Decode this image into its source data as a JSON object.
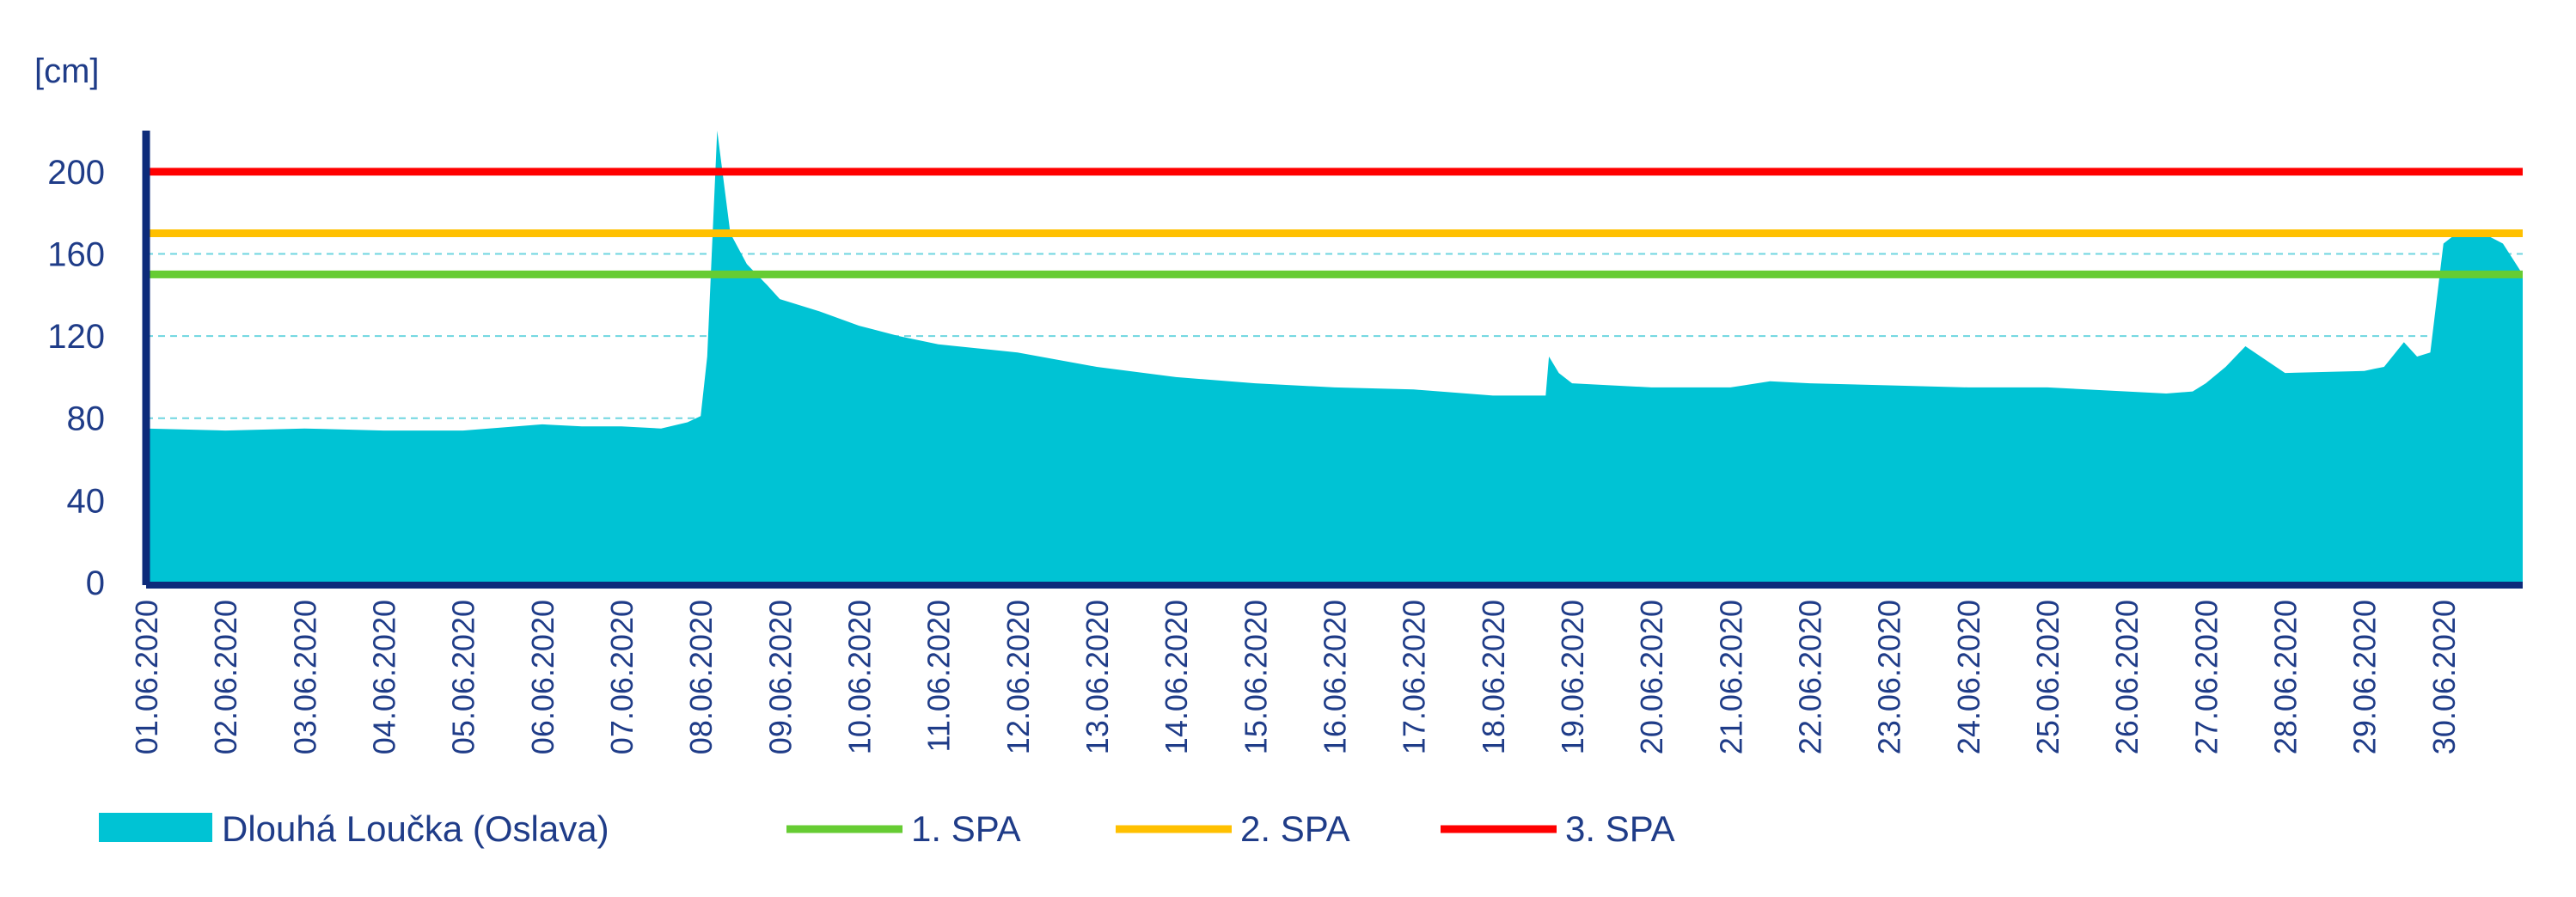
{
  "chart_data": {
    "type": "area",
    "yunit": "[cm]",
    "ylim": [
      0,
      220
    ],
    "yticks": [
      0,
      40,
      80,
      120,
      160,
      200
    ],
    "gridlines_y": [
      80,
      120,
      160
    ],
    "grid": "dashed horizontal",
    "legend_placement": "bottom",
    "x_start": "01.06.2020",
    "x_end": "01.07.2020",
    "x_ticks": [
      "01.06.2020",
      "02.06.2020",
      "03.06.2020",
      "04.06.2020",
      "05.06.2020",
      "06.06.2020",
      "07.06.2020",
      "08.06.2020",
      "09.06.2020",
      "10.06.2020",
      "11.06.2020",
      "12.06.2020",
      "13.06.2020",
      "14.06.2020",
      "15.06.2020",
      "16.06.2020",
      "17.06.2020",
      "18.06.2020",
      "19.06.2020",
      "20.06.2020",
      "21.06.2020",
      "22.06.2020",
      "23.06.2020",
      "24.06.2020",
      "25.06.2020",
      "26.06.2020",
      "27.06.2020",
      "28.06.2020",
      "29.06.2020",
      "30.06.2020"
    ],
    "series": [
      {
        "name": "Dlouhá Loučka (Oslava)",
        "color": "#00c3d4",
        "x": [
          "01.06.2020 00:00",
          "02.06.2020 00:00",
          "03.06.2020 00:00",
          "04.06.2020 00:00",
          "05.06.2020 00:00",
          "06.06.2020 00:00",
          "06.06.2020 12:00",
          "07.06.2020 00:00",
          "07.06.2020 12:00",
          "07.06.2020 20:00",
          "08.06.2020 00:00",
          "08.06.2020 02:00",
          "08.06.2020 05:00",
          "08.06.2020 09:00",
          "08.06.2020 14:00",
          "08.06.2020 20:00",
          "09.06.2020 00:00",
          "09.06.2020 12:00",
          "10.06.2020 00:00",
          "10.06.2020 12:00",
          "11.06.2020 00:00",
          "12.06.2020 00:00",
          "13.06.2020 00:00",
          "14.06.2020 00:00",
          "15.06.2020 00:00",
          "16.06.2020 00:00",
          "17.06.2020 00:00",
          "18.06.2020 00:00",
          "18.06.2020 16:00",
          "18.06.2020 17:00",
          "18.06.2020 20:00",
          "19.06.2020 00:00",
          "20.06.2020 00:00",
          "21.06.2020 00:00",
          "21.06.2020 12:00",
          "22.06.2020 00:00",
          "23.06.2020 00:00",
          "24.06.2020 00:00",
          "25.06.2020 00:00",
          "26.06.2020 00:00",
          "26.06.2020 12:00",
          "26.06.2020 20:00",
          "27.06.2020 00:00",
          "27.06.2020 06:00",
          "27.06.2020 12:00",
          "28.06.2020 00:00",
          "29.06.2020 00:00",
          "29.06.2020 03:00",
          "29.06.2020 06:00",
          "29.06.2020 12:00",
          "29.06.2020 16:00",
          "29.06.2020 20:00",
          "30.06.2020 00:00",
          "30.06.2020 04:00",
          "30.06.2020 12:00",
          "30.06.2020 18:00",
          "01.07.2020 00:00"
        ],
        "values": [
          75,
          74,
          75,
          74,
          74,
          77,
          76,
          76,
          75,
          78,
          81,
          110,
          220,
          170,
          155,
          145,
          138,
          132,
          125,
          120,
          116,
          112,
          105,
          100,
          97,
          95,
          94,
          91,
          91,
          110,
          102,
          97,
          95,
          95,
          98,
          97,
          96,
          95,
          95,
          93,
          92,
          93,
          97,
          105,
          115,
          102,
          103,
          104,
          105,
          117,
          110,
          112,
          165,
          170,
          170,
          165,
          150
        ]
      },
      {
        "name": "1. SPA",
        "color": "#66cc33",
        "value": 150
      },
      {
        "name": "2. SPA",
        "color": "#ffc000",
        "value": 170
      },
      {
        "name": "3. SPA",
        "color": "#ff0000",
        "value": 200
      }
    ]
  }
}
